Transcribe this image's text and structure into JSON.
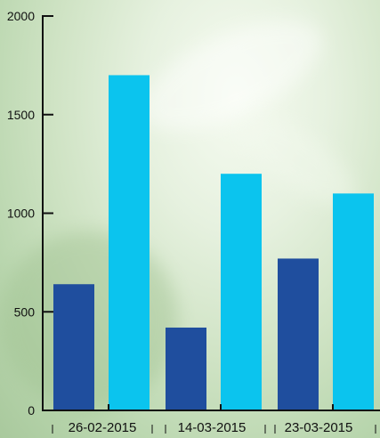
{
  "chart_data": {
    "type": "bar",
    "title": "",
    "xlabel": "",
    "ylabel": "",
    "categories": [
      "26-02-2015",
      "14-03-2015",
      "23-03-2015"
    ],
    "series": [
      {
        "values": [
          640,
          420,
          770
        ]
      },
      {
        "values": [
          1700,
          1200,
          1100
        ]
      }
    ],
    "ylim": [
      0,
      2000
    ],
    "yticks": [
      "0",
      "500",
      "1000",
      "1500",
      "2000"
    ],
    "grid": false,
    "legend": "none"
  },
  "colors": {
    "series_0": "#1f4e9e",
    "series_1": "#0bc4ee",
    "axis": "#111111"
  }
}
